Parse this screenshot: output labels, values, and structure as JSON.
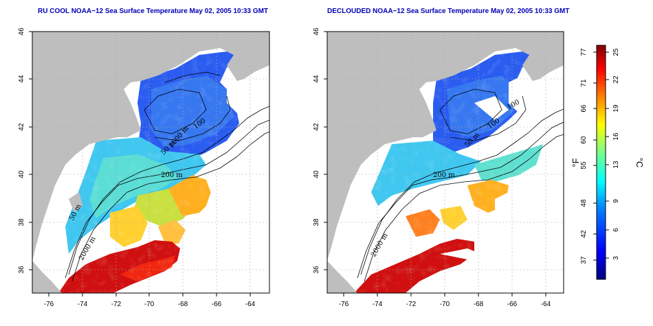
{
  "panels": [
    {
      "title": "RU COOL NOAA−12 Sea Surface Temperature May 02, 2005 10:33 GMT",
      "x_ticks": [
        "-76",
        "-74",
        "-72",
        "-70",
        "-68",
        "-66",
        "-64"
      ],
      "y_ticks": [
        "36",
        "38",
        "40",
        "42",
        "44",
        "46"
      ],
      "contour_labels": [
        "50 m",
        "200 m",
        "1000 m",
        "2000 m",
        "50 m",
        "100"
      ]
    },
    {
      "title": "DECLOUDED NOAA−12 Sea Surface Temperature May 02, 2005 10:33 GMT",
      "x_ticks": [
        "-76",
        "-74",
        "-72",
        "-70",
        "-68",
        "-66",
        "-64"
      ],
      "y_ticks": [
        "36",
        "38",
        "40",
        "42",
        "44",
        "46"
      ],
      "contour_labels": [
        "200 m",
        "2000 m",
        "50 m",
        "100",
        "100"
      ]
    }
  ],
  "colorbar": {
    "f_label": "°F",
    "c_label": "°C",
    "f_ticks": [
      "77",
      "71",
      "66",
      "60",
      "55",
      "48",
      "42",
      "37"
    ],
    "c_ticks": [
      "25",
      "22",
      "19",
      "16",
      "13",
      "9",
      "6",
      "3"
    ]
  },
  "colors": {
    "land": "#bebebe",
    "title": "#0000b4",
    "cold": "#0000c8",
    "warm": "#c80000"
  }
}
